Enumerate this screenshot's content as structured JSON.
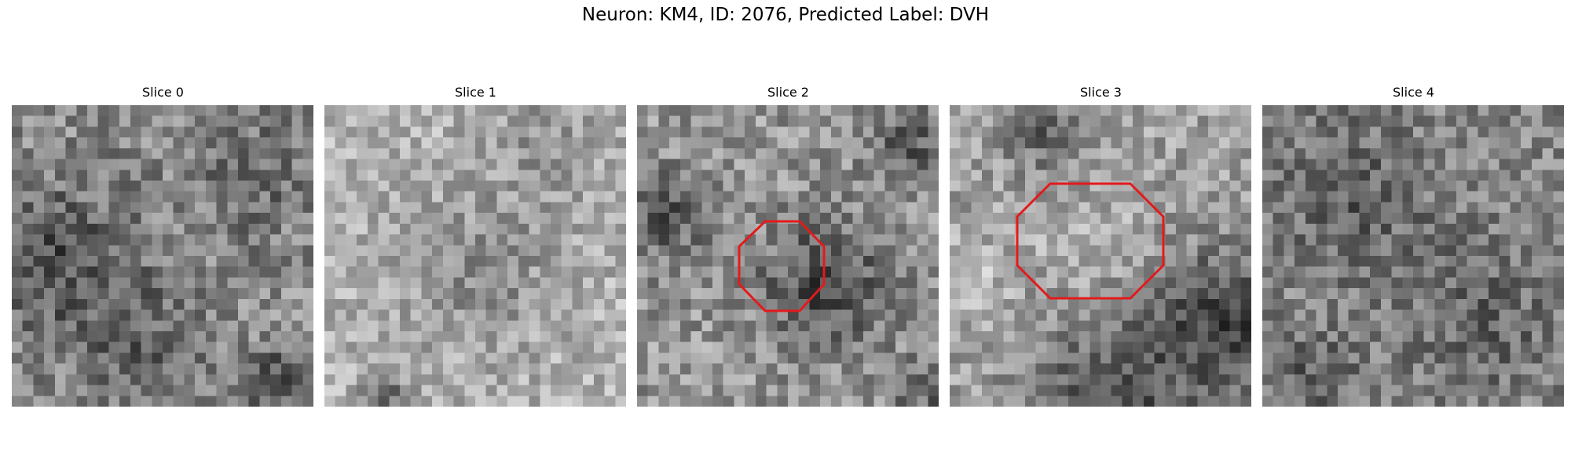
{
  "figure": {
    "title": "Neuron: KM4, ID: 2076, Predicted Label: DVH",
    "outline_color": "#e31a1c",
    "colormap": "gray"
  },
  "slices": [
    {
      "title": "Slice 0",
      "has_outline": false
    },
    {
      "title": "Slice 1",
      "has_outline": false
    },
    {
      "title": "Slice 2",
      "has_outline": true
    },
    {
      "title": "Slice 3",
      "has_outline": true
    },
    {
      "title": "Slice 4",
      "has_outline": false
    }
  ]
}
